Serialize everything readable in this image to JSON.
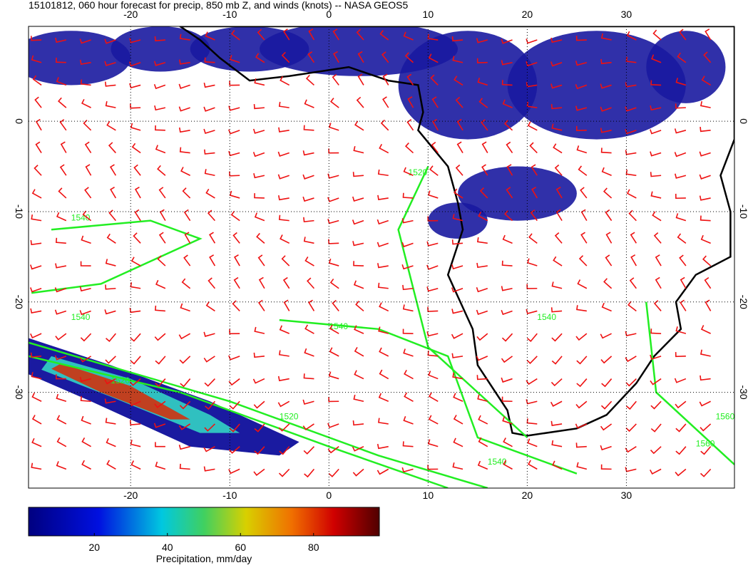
{
  "map": {
    "title": "15101812, 060 hour forecast for precip, 850 mb Z, and winds (knots) -- NASA GEOS5",
    "xlim": [
      -30.3,
      40.9
    ],
    "ylim": [
      -40.6,
      10.5
    ],
    "xticks": [
      -20,
      -10,
      0,
      10,
      20,
      30
    ],
    "yticks": [
      0,
      -10,
      -20,
      -30
    ],
    "grid": true,
    "contour_labels": [
      "1540",
      "1540",
      "1520",
      "1540",
      "1520",
      "1540",
      "1560",
      "1520",
      "1540",
      "1560"
    ]
  },
  "colorbar": {
    "label": "Precipitation, mm/day",
    "lim": [
      2,
      98
    ],
    "ticks": [
      20,
      40,
      60,
      80
    ]
  }
}
